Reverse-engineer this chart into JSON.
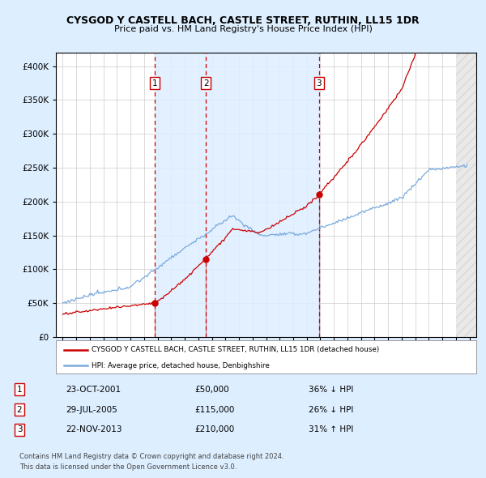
{
  "title": "CYSGOD Y CASTELL BACH, CASTLE STREET, RUTHIN, LL15 1DR",
  "subtitle": "Price paid vs. HM Land Registry's House Price Index (HPI)",
  "sale_dates_num": [
    2001.81,
    2005.57,
    2013.9
  ],
  "sale_prices": [
    50000,
    115000,
    210000
  ],
  "sale_labels": [
    "1",
    "2",
    "3"
  ],
  "sale_dates_str": [
    "23-OCT-2001",
    "29-JUL-2005",
    "22-NOV-2013"
  ],
  "sale_prices_str": [
    "£50,000",
    "£115,000",
    "£210,000"
  ],
  "sale_hpi_str": [
    "36% ↓ HPI",
    "26% ↓ HPI",
    "31% ↑ HPI"
  ],
  "hpi_color": "#7aaadd",
  "price_color": "#cc0000",
  "vline_color": "#cc0000",
  "shade_color": "#ddeeff",
  "background_color": "#ddeeff",
  "plot_bg_color": "#ffffff",
  "legend_label_price": "CYSGOD Y CASTELL BACH, CASTLE STREET, RUTHIN, LL15 1DR (detached house)",
  "legend_label_hpi": "HPI: Average price, detached house, Denbighshire",
  "footer_line1": "Contains HM Land Registry data © Crown copyright and database right 2024.",
  "footer_line2": "This data is licensed under the Open Government Licence v3.0.",
  "xmin": 1994.5,
  "xmax": 2025.5,
  "ymin": 0,
  "ymax": 420000
}
